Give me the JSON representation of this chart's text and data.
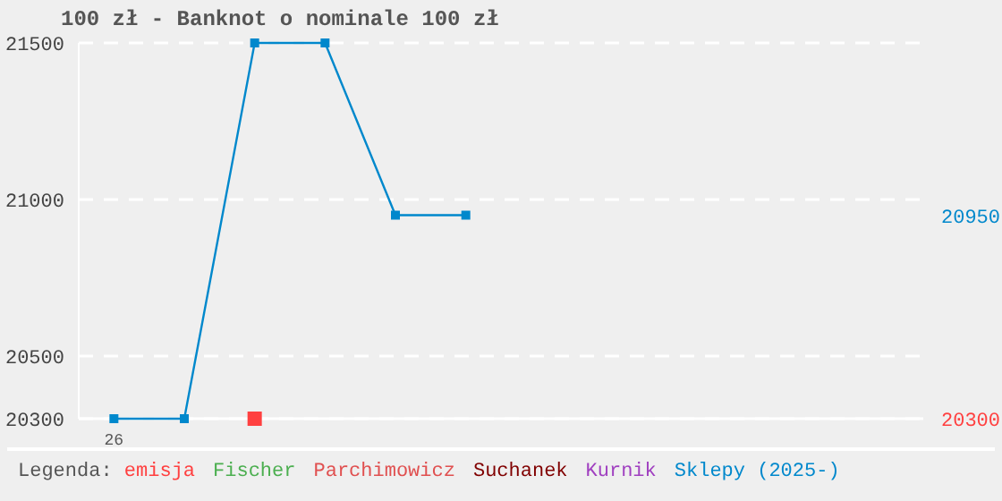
{
  "chart_data": {
    "type": "line",
    "title": "100 zł - Banknot o nominale 100 zł",
    "legend_title": "Legenda:",
    "categories": [
      "26",
      null,
      null,
      null,
      null,
      null,
      null,
      null,
      null,
      null,
      null,
      null
    ],
    "series": [
      {
        "name": "emisja",
        "type": "scatter",
        "color": "#ff4040",
        "marker": "square",
        "values": [
          null,
          null,
          20300,
          null,
          null,
          null,
          null,
          null,
          null,
          null,
          null,
          null
        ]
      },
      {
        "name": "Fischer",
        "color": "#4caf50",
        "values": [
          null,
          null,
          null,
          null,
          null,
          null,
          null,
          null,
          null,
          null,
          null,
          null
        ]
      },
      {
        "name": "Parchimowicz",
        "color": "#e05050",
        "values": [
          null,
          null,
          null,
          null,
          null,
          null,
          null,
          null,
          null,
          null,
          null,
          null
        ]
      },
      {
        "name": "Suchanek",
        "color": "#800000",
        "values": [
          null,
          null,
          null,
          null,
          null,
          null,
          null,
          null,
          null,
          null,
          null,
          null
        ]
      },
      {
        "name": "Kurnik",
        "color": "#a040c0",
        "values": [
          null,
          null,
          null,
          null,
          null,
          null,
          null,
          null,
          null,
          null,
          null,
          null
        ]
      },
      {
        "name": "Sklepy (2025-)",
        "color": "#0088cc",
        "marker": "square",
        "values": [
          20300,
          20300,
          21500,
          21500,
          20950,
          20950,
          null,
          null,
          null,
          null,
          null,
          null
        ]
      }
    ],
    "ylim": [
      20300,
      21500
    ],
    "yticks": [
      20300,
      20500,
      21000,
      21500
    ],
    "y2lim": [
      20300,
      21500
    ],
    "y2ticks": [
      20300,
      20950
    ],
    "grid": "y",
    "legend": "bottom"
  }
}
